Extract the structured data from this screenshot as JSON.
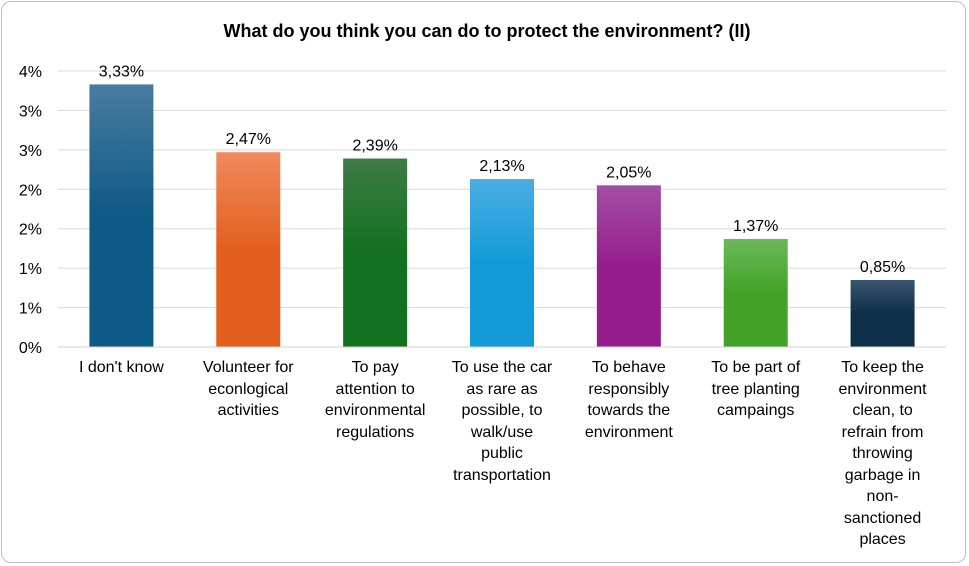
{
  "chart_data": {
    "type": "bar",
    "title": "What do you think you can do to protect the environment? (II)",
    "categories": [
      "I don't know",
      "Volunteer for econlogical activities",
      "To pay attention to environmental regulations",
      "To use the car as rare as possible, to walk/use public transportation",
      "To behave responsibly towards the environment",
      "To be part of tree planting campaings",
      "To keep the environment clean, to refrain from throwing garbage in non-sanctioned places"
    ],
    "category_lines": [
      [
        "I don't know"
      ],
      [
        "Volunteer for",
        "econlogical",
        "activities"
      ],
      [
        "To pay",
        "attention to",
        "environmental",
        "regulations"
      ],
      [
        "To use the car",
        "as rare as",
        "possible, to",
        "walk/use",
        "public",
        "transportation"
      ],
      [
        "To behave",
        "responsibly",
        "towards the",
        "environment"
      ],
      [
        "To be part of",
        "tree planting",
        "campaings"
      ],
      [
        "To keep the",
        "environment",
        "clean, to",
        "refrain from",
        "throwing",
        "garbage in",
        "non-",
        "sanctioned",
        "places"
      ]
    ],
    "values": [
      3.33,
      2.47,
      2.39,
      2.13,
      2.05,
      1.37,
      0.85
    ],
    "data_labels": [
      "3,33%",
      "2,47%",
      "2,39%",
      "2,13%",
      "2,05%",
      "1,37%",
      "0,85%"
    ],
    "y_ticks": [
      {
        "value": 0,
        "label": "0%"
      },
      {
        "value": 0.5,
        "label": "1%"
      },
      {
        "value": 1.0,
        "label": "1%"
      },
      {
        "value": 1.5,
        "label": "2%"
      },
      {
        "value": 2.0,
        "label": "2%"
      },
      {
        "value": 2.5,
        "label": "3%"
      },
      {
        "value": 3.0,
        "label": "3%"
      },
      {
        "value": 3.5,
        "label": "4%"
      }
    ],
    "ylim": [
      0,
      3.5
    ],
    "grid": true,
    "legend": "none",
    "colors": [
      [
        "#4a7ba0",
        "#0d5a86"
      ],
      [
        "#f08a5d",
        "#e35f1e"
      ],
      [
        "#3f7a48",
        "#12711e"
      ],
      [
        "#4aaee3",
        "#129bd8"
      ],
      [
        "#a24ea5",
        "#951d8c"
      ],
      [
        "#6bb85a",
        "#42a328"
      ],
      [
        "#39566e",
        "#0d2f48"
      ]
    ]
  }
}
